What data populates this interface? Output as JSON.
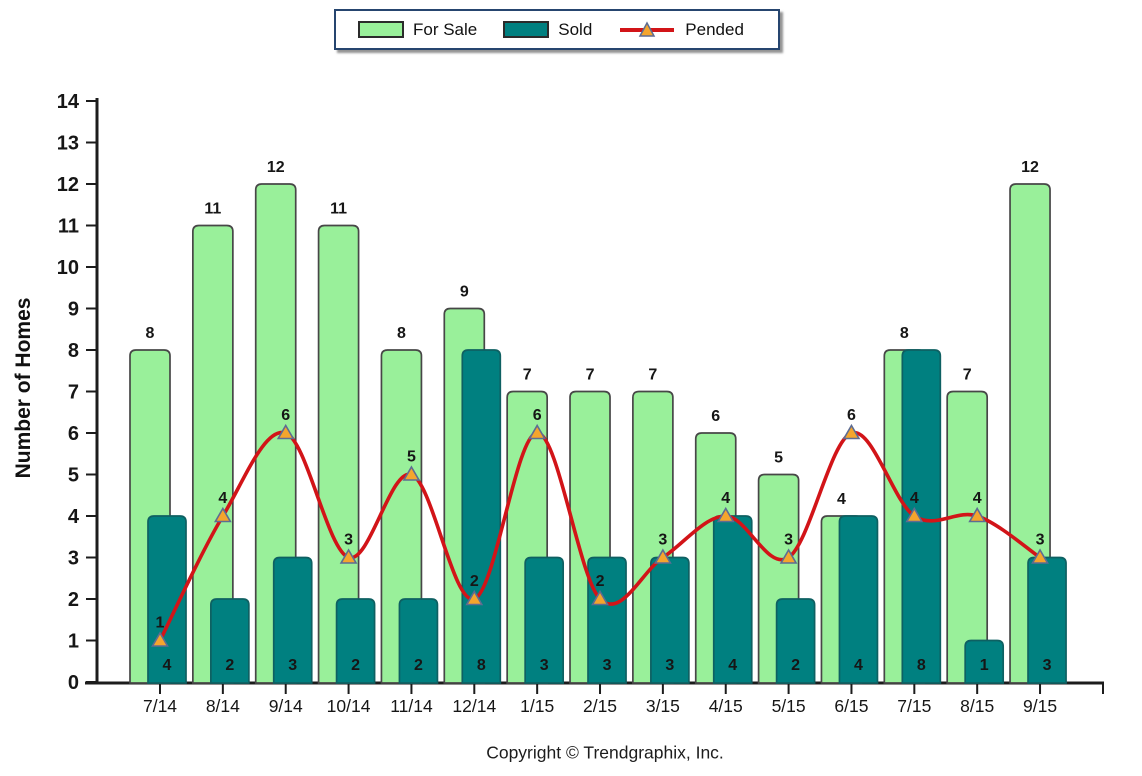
{
  "chart_data": {
    "type": "bar",
    "title": "",
    "categories": [
      "7/14",
      "8/14",
      "9/14",
      "10/14",
      "11/14",
      "12/14",
      "1/15",
      "2/15",
      "3/15",
      "4/15",
      "5/15",
      "6/15",
      "7/15",
      "8/15",
      "9/15"
    ],
    "series": [
      {
        "name": "For Sale",
        "type": "bar",
        "color": "#99F09A",
        "border_color": "#474747",
        "values": [
          8,
          11,
          12,
          11,
          8,
          9,
          7,
          7,
          7,
          6,
          5,
          4,
          8,
          7,
          12
        ]
      },
      {
        "name": "Sold",
        "type": "bar",
        "color": "#008080",
        "border_color": "#0E6062",
        "values": [
          4,
          2,
          3,
          2,
          2,
          8,
          3,
          3,
          3,
          4,
          2,
          4,
          8,
          1,
          3
        ]
      },
      {
        "name": "Pended",
        "type": "line",
        "color": "#D21418",
        "marker": "triangle",
        "marker_color": "#F4A52D",
        "marker_border_color": "#5E6C92",
        "values": [
          1,
          4,
          6,
          3,
          5,
          2,
          6,
          2,
          3,
          4,
          3,
          6,
          4,
          4,
          3
        ]
      }
    ],
    "xlabel": "",
    "ylabel": "Number of Homes",
    "ylim": [
      0,
      14
    ],
    "yticks": [
      0,
      1,
      2,
      3,
      4,
      5,
      6,
      7,
      8,
      9,
      10,
      11,
      12,
      13,
      14
    ],
    "grid": false,
    "legend_position": "top"
  },
  "footer": {
    "copyright": "Copyright © Trendgraphix, Inc."
  },
  "colors": {
    "axis": "#1c1c1c",
    "background": "#ffffff",
    "legend_border": "#26456F"
  }
}
